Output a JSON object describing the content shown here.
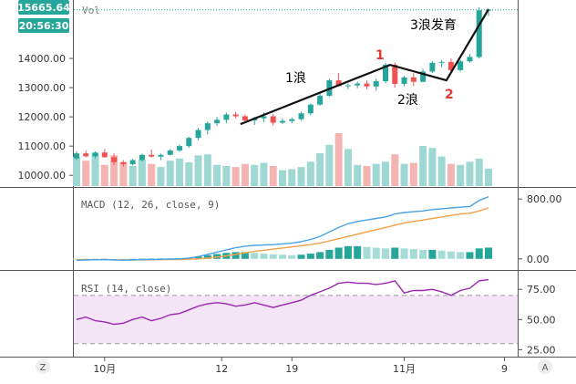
{
  "price_badges": {
    "last_price": "15665.64",
    "countdown": "20:56:30"
  },
  "volume_label": "Vol",
  "macd_label": "MACD (12, 26, close, 9)",
  "rsi_label": "RSI (14, close)",
  "corner_buttons": {
    "left": "Z",
    "right": "A"
  },
  "colors": {
    "up": "#26a69a",
    "down": "#ef5350",
    "macd_line": "#4aa3e8",
    "signal_line": "#f5a04a",
    "rsi_line": "#9c27b0",
    "rsi_band": "#f3e5f5",
    "badge_green": "#26a69a",
    "annotation_red": "#e53935"
  },
  "annotations": [
    {
      "text": "1浪",
      "color": "#000000"
    },
    {
      "text": "1",
      "color": "#e53935"
    },
    {
      "text": "2浪",
      "color": "#000000"
    },
    {
      "text": "2",
      "color": "#e53935"
    },
    {
      "text": "3浪发育",
      "color": "#000000"
    }
  ],
  "chart_data": [
    {
      "type": "candlestick",
      "title": "",
      "x_tick_labels": [
        "10月",
        "12",
        "19",
        "11月",
        "9"
      ],
      "y_tick_labels": [
        "10000.00",
        "11000.00",
        "12000.00",
        "13000.00",
        "14000.00"
      ],
      "ylim": [
        9850,
        15750
      ],
      "last_price": 15665.64,
      "ohlc": [
        [
          10580,
          10820,
          10520,
          10750
        ],
        [
          10750,
          10850,
          10620,
          10650
        ],
        [
          10650,
          10820,
          10580,
          10780
        ],
        [
          10780,
          10900,
          10600,
          10620
        ],
        [
          10620,
          10750,
          10350,
          10450
        ],
        [
          10450,
          10520,
          10300,
          10380
        ],
        [
          10380,
          10560,
          10340,
          10520
        ],
        [
          10520,
          10740,
          10480,
          10700
        ],
        [
          10700,
          10880,
          10600,
          10640
        ],
        [
          10640,
          10740,
          10520,
          10700
        ],
        [
          10700,
          10900,
          10680,
          10850
        ],
        [
          10850,
          11050,
          10800,
          11000
        ],
        [
          11000,
          11320,
          10940,
          11280
        ],
        [
          11280,
          11620,
          11200,
          11550
        ],
        [
          11550,
          11850,
          11400,
          11780
        ],
        [
          11780,
          12000,
          11700,
          11900
        ],
        [
          11900,
          12150,
          11780,
          12080
        ],
        [
          12080,
          12180,
          11950,
          12020
        ],
        [
          12020,
          12080,
          11800,
          11880
        ],
        [
          11880,
          12000,
          11720,
          11950
        ],
        [
          11950,
          12150,
          11820,
          12020
        ],
        [
          12020,
          12100,
          11700,
          11800
        ],
        [
          11800,
          11950,
          11760,
          11860
        ],
        [
          11860,
          11980,
          11780,
          11920
        ],
        [
          11920,
          12180,
          11880,
          12120
        ],
        [
          12120,
          12460,
          12050,
          12420
        ],
        [
          12420,
          12800,
          12380,
          12720
        ],
        [
          12720,
          13300,
          12680,
          13250
        ],
        [
          13250,
          13500,
          13100,
          13050
        ],
        [
          13050,
          13150,
          12950,
          13080
        ],
        [
          13080,
          13200,
          12980,
          13140
        ],
        [
          13140,
          13250,
          12950,
          13040
        ],
        [
          13040,
          13300,
          12900,
          13220
        ],
        [
          13220,
          13850,
          13150,
          13780
        ],
        [
          13780,
          13860,
          13000,
          13130
        ],
        [
          13130,
          13400,
          13050,
          13350
        ],
        [
          13350,
          13500,
          13050,
          13200
        ],
        [
          13200,
          13650,
          13180,
          13550
        ],
        [
          13550,
          13900,
          13500,
          13850
        ],
        [
          13850,
          13950,
          13700,
          13880
        ],
        [
          13880,
          14000,
          13550,
          13600
        ],
        [
          13600,
          13950,
          13550,
          13900
        ],
        [
          13900,
          14150,
          13850,
          14050
        ],
        [
          14050,
          15750,
          14000,
          15650
        ],
        [
          15650,
          15700,
          15450,
          15665
        ]
      ],
      "series": [
        {
          "name": "Vol",
          "values": [
            55,
            48,
            62,
            40,
            58,
            45,
            38,
            50,
            42,
            36,
            48,
            52,
            45,
            58,
            60,
            40,
            38,
            36,
            42,
            40,
            44,
            38,
            30,
            32,
            36,
            46,
            62,
            78,
            100,
            70,
            40,
            38,
            42,
            46,
            60,
            42,
            44,
            76,
            72,
            56,
            42,
            40,
            46,
            52,
            33
          ]
        }
      ]
    },
    {
      "type": "line",
      "title": "MACD (12, 26, close, 9)",
      "y_tick_labels": [
        "0.00",
        "800.00"
      ],
      "ylim": [
        -100,
        900
      ],
      "series": [
        {
          "name": "MACD",
          "values": [
            -20,
            -15,
            -12,
            -10,
            -15,
            -18,
            -15,
            -10,
            -8,
            -6,
            -4,
            0,
            10,
            30,
            60,
            90,
            120,
            150,
            170,
            180,
            185,
            190,
            200,
            210,
            230,
            260,
            300,
            360,
            420,
            470,
            500,
            520,
            540,
            560,
            600,
            620,
            630,
            640,
            660,
            670,
            680,
            690,
            700,
            780,
            830
          ]
        },
        {
          "name": "Signal",
          "values": [
            -10,
            -10,
            -11,
            -11,
            -12,
            -13,
            -14,
            -13,
            -12,
            -11,
            -10,
            -8,
            -5,
            0,
            10,
            25,
            40,
            60,
            80,
            100,
            115,
            130,
            145,
            160,
            175,
            190,
            210,
            240,
            270,
            300,
            330,
            360,
            390,
            420,
            450,
            480,
            500,
            520,
            540,
            560,
            580,
            600,
            610,
            640,
            680
          ]
        },
        {
          "name": "Histogram",
          "values": [
            -10,
            -5,
            -1,
            1,
            -3,
            -5,
            -1,
            3,
            4,
            5,
            6,
            8,
            15,
            30,
            50,
            65,
            80,
            90,
            90,
            80,
            70,
            60,
            55,
            50,
            55,
            70,
            90,
            120,
            150,
            170,
            170,
            160,
            150,
            140,
            150,
            140,
            130,
            120,
            120,
            110,
            100,
            90,
            90,
            140,
            150
          ]
        }
      ]
    },
    {
      "type": "line",
      "title": "RSI (14, close)",
      "y_tick_labels": [
        "25.00",
        "50.00",
        "75.00"
      ],
      "ylim": [
        20,
        88
      ],
      "band": [
        30,
        70
      ],
      "series": [
        {
          "name": "RSI",
          "values": [
            50,
            52,
            49,
            48,
            46,
            47,
            50,
            52,
            49,
            51,
            54,
            55,
            58,
            61,
            63,
            64,
            63,
            61,
            62,
            64,
            62,
            60,
            62,
            64,
            66,
            70,
            73,
            76,
            80,
            81,
            80,
            80,
            79,
            80,
            82,
            72,
            74,
            74,
            75,
            73,
            70,
            74,
            76,
            82,
            83
          ]
        }
      ]
    }
  ],
  "plot_annotations": [
    "1浪",
    "2浪",
    "3浪发育"
  ]
}
